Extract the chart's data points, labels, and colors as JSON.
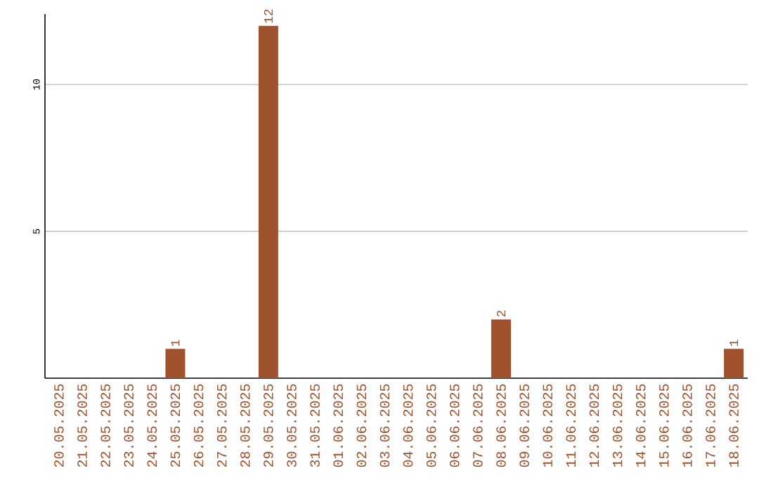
{
  "chart_data": {
    "type": "bar",
    "categories": [
      "20.05.2025",
      "21.05.2025",
      "22.05.2025",
      "23.05.2025",
      "24.05.2025",
      "25.05.2025",
      "26.05.2025",
      "27.05.2025",
      "28.05.2025",
      "29.05.2025",
      "30.05.2025",
      "31.05.2025",
      "01.06.2025",
      "02.06.2025",
      "03.06.2025",
      "04.06.2025",
      "05.06.2025",
      "06.06.2025",
      "07.06.2025",
      "08.06.2025",
      "09.06.2025",
      "10.06.2025",
      "11.06.2025",
      "12.06.2025",
      "13.06.2025",
      "14.06.2025",
      "15.06.2025",
      "16.06.2025",
      "17.06.2025",
      "18.06.2025"
    ],
    "values": [
      0,
      0,
      0,
      0,
      0,
      1,
      0,
      0,
      0,
      12,
      0,
      0,
      0,
      0,
      0,
      0,
      0,
      0,
      0,
      2,
      0,
      0,
      0,
      0,
      0,
      0,
      0,
      0,
      0,
      1
    ],
    "value_labels": [
      null,
      null,
      null,
      null,
      null,
      "1",
      null,
      null,
      null,
      "12",
      null,
      null,
      null,
      null,
      null,
      null,
      null,
      null,
      null,
      "2",
      null,
      null,
      null,
      null,
      null,
      null,
      null,
      null,
      null,
      "1"
    ],
    "color": "#a0522d",
    "ylim": [
      0,
      12.4
    ],
    "yticks": [
      5,
      10
    ],
    "grid": "y"
  }
}
